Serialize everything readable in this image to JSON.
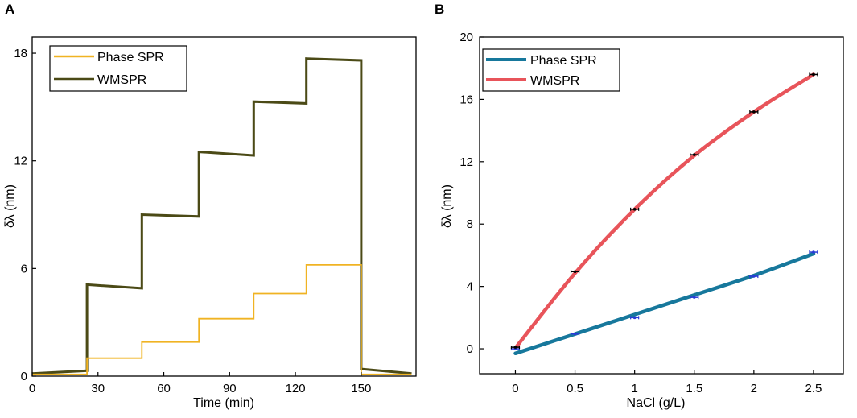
{
  "chart_data": [
    {
      "panel": "A",
      "type": "line",
      "xlabel": "Time (min)",
      "ylabel": "δλ (nm)",
      "xlim": [
        0,
        175
      ],
      "ylim": [
        0,
        18.9
      ],
      "xticks": [
        0,
        30,
        60,
        90,
        120,
        150
      ],
      "yticks": [
        0,
        6,
        12,
        18
      ],
      "xtick_labels": [
        "0",
        "30",
        "60",
        "90",
        "120",
        "150"
      ],
      "ytick_labels": [
        "0",
        "6",
        "12",
        "18"
      ],
      "legend": [
        {
          "label": "Phase SPR",
          "color": "#f0b323"
        },
        {
          "label": "WMSPR",
          "color": "#4b4a16"
        }
      ],
      "series": [
        {
          "name": "Phase SPR",
          "color": "#f0b323",
          "segments": [
            {
              "x0": 0,
              "x1": 25,
              "y": 0.1
            },
            {
              "x0": 25,
              "x1": 50,
              "y": 1.0
            },
            {
              "x0": 50,
              "x1": 76,
              "y": 1.9
            },
            {
              "x0": 76,
              "x1": 101,
              "y": 3.2
            },
            {
              "x0": 101,
              "x1": 125,
              "y": 4.6
            },
            {
              "x0": 125,
              "x1": 150,
              "y": 6.2
            },
            {
              "x0": 150,
              "x1": 173,
              "y": 0.1
            }
          ]
        },
        {
          "name": "WMSPR",
          "color": "#4b4a16",
          "segments": [
            {
              "x0": 0,
              "x1": 25,
              "y": 0.15,
              "y_end": 0.3
            },
            {
              "x0": 25,
              "x1": 50,
              "y": 5.1,
              "y_end": 4.9
            },
            {
              "x0": 50,
              "x1": 76,
              "y": 9.0,
              "y_end": 8.9
            },
            {
              "x0": 76,
              "x1": 101,
              "y": 12.5,
              "y_end": 12.3
            },
            {
              "x0": 101,
              "x1": 125,
              "y": 15.3,
              "y_end": 15.2
            },
            {
              "x0": 125,
              "x1": 150,
              "y": 17.7,
              "y_end": 17.6
            },
            {
              "x0": 150,
              "x1": 173,
              "y": 0.4,
              "y_end": 0.15
            }
          ]
        }
      ]
    },
    {
      "panel": "B",
      "type": "scatter",
      "xlabel": "NaCl (g/L)",
      "ylabel": "δλ (nm)",
      "xlim": [
        -0.3,
        2.75
      ],
      "ylim": [
        -1.6,
        20
      ],
      "xticks": [
        0,
        0.5,
        1,
        1.5,
        2,
        2.5
      ],
      "yticks": [
        0,
        4,
        8,
        12,
        16,
        20
      ],
      "xtick_labels": [
        "0",
        "0.5",
        "1",
        "1.5",
        "2",
        "2.5"
      ],
      "ytick_labels": [
        "0",
        "4",
        "8",
        "12",
        "16",
        "20"
      ],
      "legend": [
        {
          "label": "Phase SPR",
          "color": "#17789c"
        },
        {
          "label": "WMSPR",
          "color": "#e8545a"
        }
      ],
      "series": [
        {
          "name": "Phase SPR",
          "fit": "linear",
          "color": "#17789c",
          "marker_color": "#2a3bd6",
          "x": [
            0,
            0.5,
            1,
            1.5,
            2,
            2.5
          ],
          "y": [
            0.0,
            0.95,
            2.0,
            3.3,
            4.65,
            6.2
          ],
          "fit_y": [
            -0.3,
            0.95,
            2.2,
            3.45,
            4.7,
            6.1
          ]
        },
        {
          "name": "WMSPR",
          "fit": "quadratic",
          "color": "#e8545a",
          "marker_color": "#000000",
          "x": [
            0,
            0.5,
            1,
            1.5,
            2,
            2.5
          ],
          "y": [
            0.1,
            4.95,
            8.95,
            12.45,
            15.2,
            17.6
          ],
          "fit_y": [
            0.05,
            4.85,
            8.95,
            12.4,
            15.2,
            17.6
          ]
        }
      ]
    }
  ]
}
